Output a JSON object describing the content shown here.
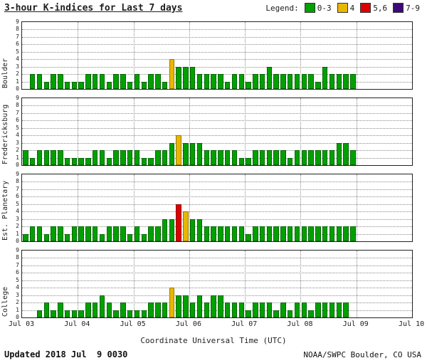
{
  "title": "3-hour K-indices for Last 7 days",
  "legend": {
    "label": "Legend:",
    "items": [
      {
        "label": "0-3",
        "color": "#00A000"
      },
      {
        "label": "4",
        "color": "#E8B800"
      },
      {
        "label": "5,6",
        "color": "#DD0000"
      },
      {
        "label": "7-9",
        "color": "#3B0A78"
      }
    ]
  },
  "x_axis": {
    "title": "Coordinate Universal Time (UTC)",
    "ticks": [
      "Jul 03",
      "Jul 04",
      "Jul 05",
      "Jul 06",
      "Jul 07",
      "Jul 08",
      "Jul 09",
      "Jul 10"
    ]
  },
  "footer": {
    "updated": "Updated 2018 Jul  9 0030",
    "source": "NOAA/SWPC Boulder, CO USA"
  },
  "chart_data": {
    "type": "bar",
    "ylim": [
      0,
      9
    ],
    "y_ticks": [
      0,
      1,
      2,
      3,
      4,
      5,
      6,
      7,
      8,
      9
    ],
    "days": 7,
    "slots_per_day": 8,
    "grid": true,
    "colors": {
      "k0_3": "#00A000",
      "k4": "#E8B800",
      "k5_6": "#DD0000",
      "k7_9": "#3B0A78"
    },
    "panels": [
      {
        "station": "Boulder",
        "values": [
          0,
          2,
          2,
          1,
          2,
          2,
          1,
          1,
          1,
          2,
          2,
          2,
          1,
          2,
          2,
          1,
          2,
          1,
          2,
          2,
          1,
          4,
          3,
          3,
          3,
          2,
          2,
          2,
          2,
          1,
          2,
          2,
          1,
          2,
          2,
          3,
          2,
          2,
          2,
          2,
          2,
          2,
          1,
          3,
          2,
          2,
          2,
          2
        ]
      },
      {
        "station": "Fredericksburg",
        "values": [
          2,
          1,
          2,
          2,
          2,
          2,
          1,
          1,
          1,
          1,
          2,
          2,
          1,
          2,
          2,
          2,
          2,
          1,
          1,
          2,
          2,
          3,
          4,
          3,
          3,
          3,
          2,
          2,
          2,
          2,
          2,
          1,
          1,
          2,
          2,
          2,
          2,
          2,
          1,
          2,
          2,
          2,
          2,
          2,
          2,
          3,
          3,
          2
        ]
      },
      {
        "station": "Est. Planetary",
        "values": [
          1,
          2,
          2,
          1,
          2,
          2,
          1,
          2,
          2,
          2,
          2,
          1,
          2,
          2,
          2,
          1,
          2,
          1,
          2,
          2,
          3,
          3,
          5,
          4,
          3,
          3,
          2,
          2,
          2,
          2,
          2,
          2,
          1,
          2,
          2,
          2,
          2,
          2,
          2,
          2,
          2,
          2,
          2,
          2,
          2,
          2,
          2,
          2
        ]
      },
      {
        "station": "College",
        "values": [
          0,
          0,
          1,
          2,
          1,
          2,
          1,
          1,
          1,
          2,
          2,
          3,
          2,
          1,
          2,
          1,
          1,
          1,
          2,
          2,
          2,
          4,
          3,
          3,
          2,
          3,
          2,
          3,
          3,
          2,
          2,
          2,
          1,
          2,
          2,
          2,
          1,
          2,
          1,
          2,
          2,
          1,
          2,
          2,
          2,
          2,
          2,
          0
        ]
      }
    ]
  }
}
